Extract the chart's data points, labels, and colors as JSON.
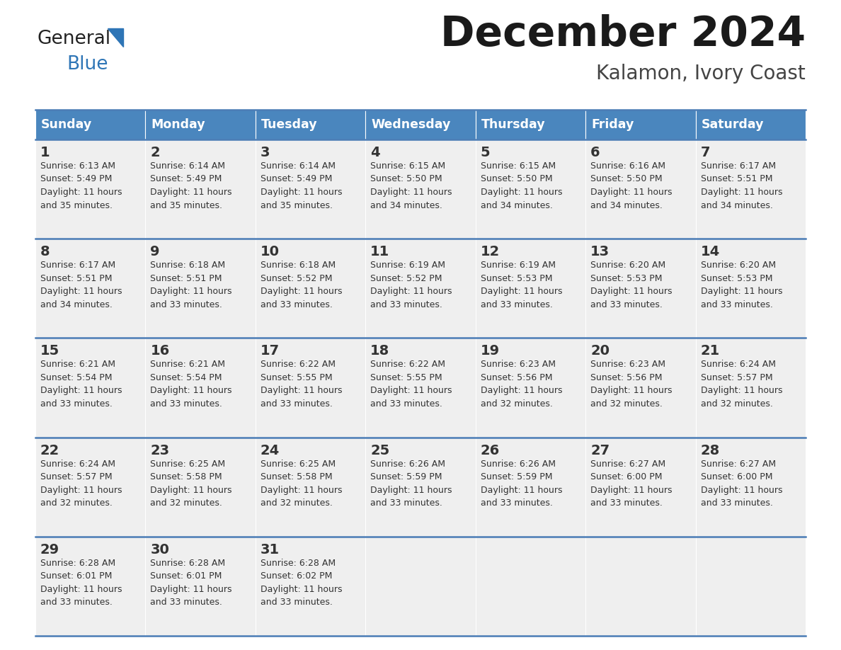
{
  "title": "December 2024",
  "subtitle": "Kalamon, Ivory Coast",
  "header_bg_color": "#4a86be",
  "header_text_color": "#ffffff",
  "cell_bg_color": "#efefef",
  "cell_text_color": "#333333",
  "grid_line_color": "#4a7cb5",
  "days_of_week": [
    "Sunday",
    "Monday",
    "Tuesday",
    "Wednesday",
    "Thursday",
    "Friday",
    "Saturday"
  ],
  "calendar_data": [
    [
      {
        "day": 1,
        "sunrise": "6:13 AM",
        "sunset": "5:49 PM",
        "daylight_hours": 11,
        "daylight_minutes": 35
      },
      {
        "day": 2,
        "sunrise": "6:14 AM",
        "sunset": "5:49 PM",
        "daylight_hours": 11,
        "daylight_minutes": 35
      },
      {
        "day": 3,
        "sunrise": "6:14 AM",
        "sunset": "5:49 PM",
        "daylight_hours": 11,
        "daylight_minutes": 35
      },
      {
        "day": 4,
        "sunrise": "6:15 AM",
        "sunset": "5:50 PM",
        "daylight_hours": 11,
        "daylight_minutes": 34
      },
      {
        "day": 5,
        "sunrise": "6:15 AM",
        "sunset": "5:50 PM",
        "daylight_hours": 11,
        "daylight_minutes": 34
      },
      {
        "day": 6,
        "sunrise": "6:16 AM",
        "sunset": "5:50 PM",
        "daylight_hours": 11,
        "daylight_minutes": 34
      },
      {
        "day": 7,
        "sunrise": "6:17 AM",
        "sunset": "5:51 PM",
        "daylight_hours": 11,
        "daylight_minutes": 34
      }
    ],
    [
      {
        "day": 8,
        "sunrise": "6:17 AM",
        "sunset": "5:51 PM",
        "daylight_hours": 11,
        "daylight_minutes": 34
      },
      {
        "day": 9,
        "sunrise": "6:18 AM",
        "sunset": "5:51 PM",
        "daylight_hours": 11,
        "daylight_minutes": 33
      },
      {
        "day": 10,
        "sunrise": "6:18 AM",
        "sunset": "5:52 PM",
        "daylight_hours": 11,
        "daylight_minutes": 33
      },
      {
        "day": 11,
        "sunrise": "6:19 AM",
        "sunset": "5:52 PM",
        "daylight_hours": 11,
        "daylight_minutes": 33
      },
      {
        "day": 12,
        "sunrise": "6:19 AM",
        "sunset": "5:53 PM",
        "daylight_hours": 11,
        "daylight_minutes": 33
      },
      {
        "day": 13,
        "sunrise": "6:20 AM",
        "sunset": "5:53 PM",
        "daylight_hours": 11,
        "daylight_minutes": 33
      },
      {
        "day": 14,
        "sunrise": "6:20 AM",
        "sunset": "5:53 PM",
        "daylight_hours": 11,
        "daylight_minutes": 33
      }
    ],
    [
      {
        "day": 15,
        "sunrise": "6:21 AM",
        "sunset": "5:54 PM",
        "daylight_hours": 11,
        "daylight_minutes": 33
      },
      {
        "day": 16,
        "sunrise": "6:21 AM",
        "sunset": "5:54 PM",
        "daylight_hours": 11,
        "daylight_minutes": 33
      },
      {
        "day": 17,
        "sunrise": "6:22 AM",
        "sunset": "5:55 PM",
        "daylight_hours": 11,
        "daylight_minutes": 33
      },
      {
        "day": 18,
        "sunrise": "6:22 AM",
        "sunset": "5:55 PM",
        "daylight_hours": 11,
        "daylight_minutes": 33
      },
      {
        "day": 19,
        "sunrise": "6:23 AM",
        "sunset": "5:56 PM",
        "daylight_hours": 11,
        "daylight_minutes": 32
      },
      {
        "day": 20,
        "sunrise": "6:23 AM",
        "sunset": "5:56 PM",
        "daylight_hours": 11,
        "daylight_minutes": 32
      },
      {
        "day": 21,
        "sunrise": "6:24 AM",
        "sunset": "5:57 PM",
        "daylight_hours": 11,
        "daylight_minutes": 32
      }
    ],
    [
      {
        "day": 22,
        "sunrise": "6:24 AM",
        "sunset": "5:57 PM",
        "daylight_hours": 11,
        "daylight_minutes": 32
      },
      {
        "day": 23,
        "sunrise": "6:25 AM",
        "sunset": "5:58 PM",
        "daylight_hours": 11,
        "daylight_minutes": 32
      },
      {
        "day": 24,
        "sunrise": "6:25 AM",
        "sunset": "5:58 PM",
        "daylight_hours": 11,
        "daylight_minutes": 32
      },
      {
        "day": 25,
        "sunrise": "6:26 AM",
        "sunset": "5:59 PM",
        "daylight_hours": 11,
        "daylight_minutes": 33
      },
      {
        "day": 26,
        "sunrise": "6:26 AM",
        "sunset": "5:59 PM",
        "daylight_hours": 11,
        "daylight_minutes": 33
      },
      {
        "day": 27,
        "sunrise": "6:27 AM",
        "sunset": "6:00 PM",
        "daylight_hours": 11,
        "daylight_minutes": 33
      },
      {
        "day": 28,
        "sunrise": "6:27 AM",
        "sunset": "6:00 PM",
        "daylight_hours": 11,
        "daylight_minutes": 33
      }
    ],
    [
      {
        "day": 29,
        "sunrise": "6:28 AM",
        "sunset": "6:01 PM",
        "daylight_hours": 11,
        "daylight_minutes": 33
      },
      {
        "day": 30,
        "sunrise": "6:28 AM",
        "sunset": "6:01 PM",
        "daylight_hours": 11,
        "daylight_minutes": 33
      },
      {
        "day": 31,
        "sunrise": "6:28 AM",
        "sunset": "6:02 PM",
        "daylight_hours": 11,
        "daylight_minutes": 33
      },
      null,
      null,
      null,
      null
    ]
  ],
  "logo_general_color": "#222222",
  "logo_blue_color": "#2e75b6",
  "logo_triangle_color": "#2e75b6"
}
